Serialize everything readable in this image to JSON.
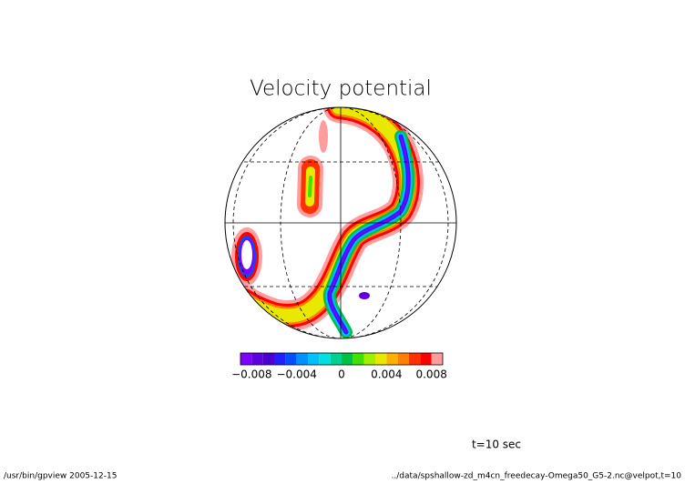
{
  "chart_data": {
    "type": "contour",
    "title": "Velocity potential",
    "annotation": "t=10 sec",
    "footer_left": "/usr/bin/gpview  2005-12-15",
    "footer_right": "../data/spshallow-zd_m4cn_freedecay-Omega50_G5-2.nc@velpot,t=10",
    "colorbar": {
      "levels": [
        -0.009,
        -0.008,
        -0.007,
        -0.006,
        -0.005,
        -0.004,
        -0.003,
        -0.002,
        -0.001,
        0,
        0.001,
        0.002,
        0.003,
        0.004,
        0.005,
        0.006,
        0.007,
        0.008,
        0.009
      ],
      "colors": [
        "#8000ff",
        "#6000e0",
        "#4a00d0",
        "#2020ff",
        "#0050ff",
        "#0090ff",
        "#00c0ff",
        "#00e0e0",
        "#00d090",
        "#00c040",
        "#40e000",
        "#a0f000",
        "#e8e800",
        "#ffb000",
        "#ff8000",
        "#ff3000",
        "#ff0000",
        "#ff9c9c"
      ],
      "xlim": [
        -0.009,
        0.009
      ],
      "xticks": [
        {
          "value": -0.008,
          "label": "−0.008"
        },
        {
          "value": -0.004,
          "label": "−0.004"
        },
        0,
        0.004,
        0.008
      ]
    }
  }
}
